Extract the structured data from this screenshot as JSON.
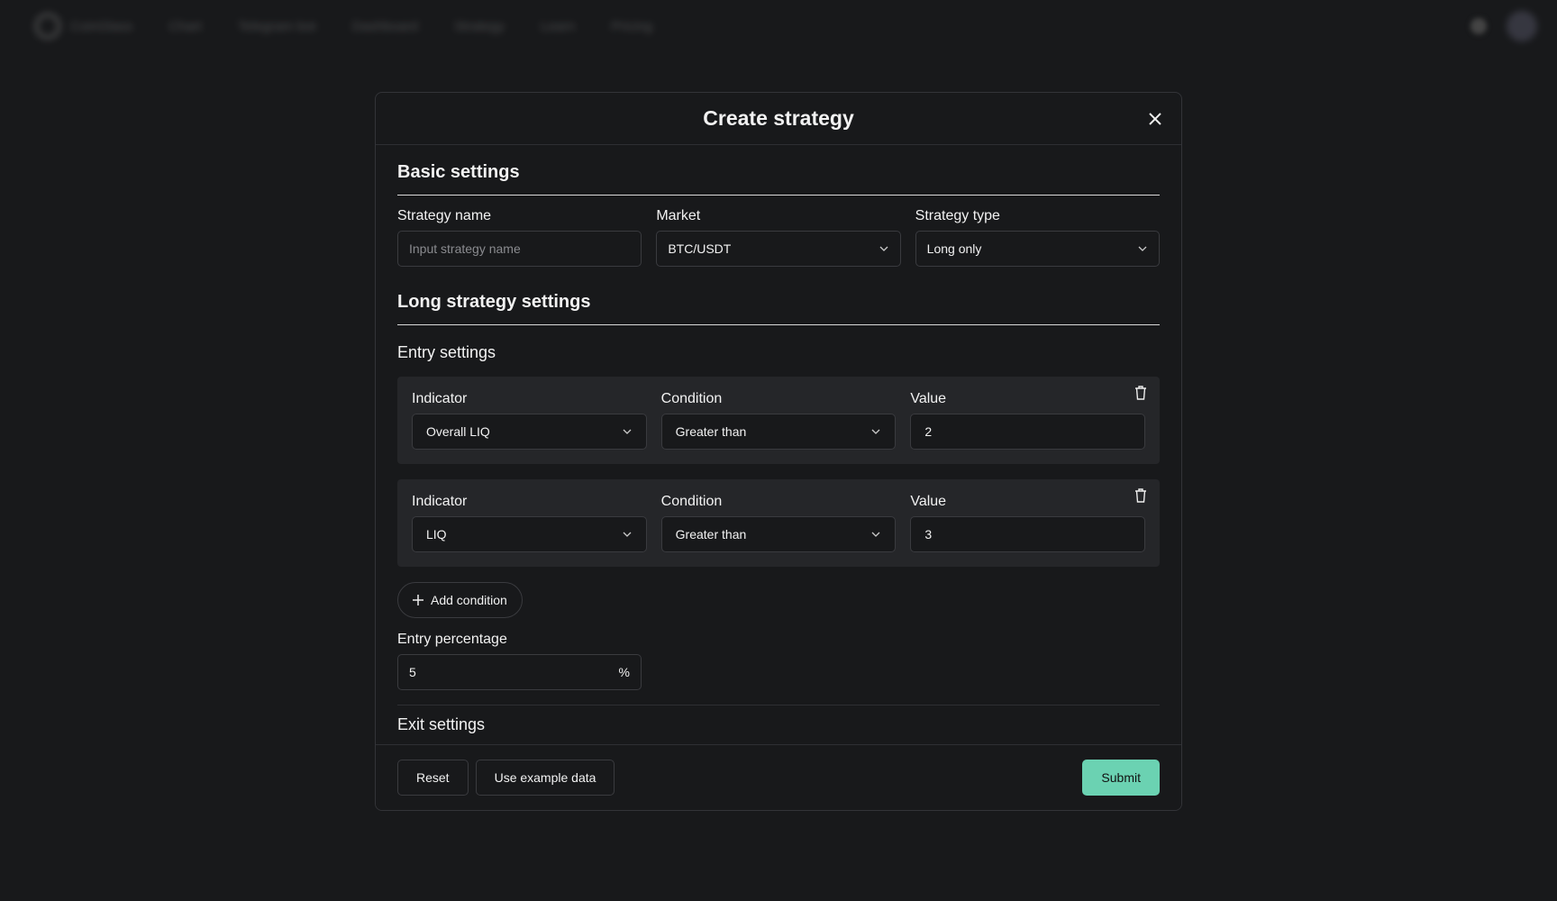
{
  "nav": {
    "brand": "CoinGlass",
    "items": [
      "Chart",
      "Telegram bot",
      "Dashboard",
      "Strategy",
      "Learn",
      "Pricing"
    ]
  },
  "modal": {
    "title": "Create strategy",
    "basic": {
      "heading": "Basic settings",
      "name_label": "Strategy name",
      "name_placeholder": "Input strategy name",
      "name_value": "",
      "market_label": "Market",
      "market_value": "BTC/USDT",
      "type_label": "Strategy type",
      "type_value": "Long only"
    },
    "long": {
      "heading": "Long strategy settings",
      "entry_heading": "Entry settings",
      "conditions": [
        {
          "indicator_label": "Indicator",
          "indicator": "Overall LIQ",
          "condition_label": "Condition",
          "condition": "Greater than",
          "value_label": "Value",
          "value": "2"
        },
        {
          "indicator_label": "Indicator",
          "indicator": "LIQ",
          "condition_label": "Condition",
          "condition": "Greater than",
          "value_label": "Value",
          "value": "3"
        }
      ],
      "add_condition": "Add condition",
      "entry_pct_label": "Entry percentage",
      "entry_pct_value": "5",
      "entry_pct_unit": "%",
      "exit_heading": "Exit settings"
    },
    "footer": {
      "reset": "Reset",
      "example": "Use example data",
      "submit": "Submit"
    }
  },
  "colors": {
    "accent": "#6bd2b2",
    "background": "#18191b",
    "card": "#252629"
  }
}
